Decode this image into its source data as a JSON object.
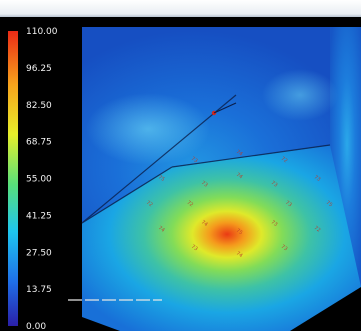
{
  "chart_data": {
    "type": "heatmap",
    "title": "",
    "colorbar": {
      "min": 0.0,
      "max": 110.0,
      "ticks": [
        "110.00",
        "96.25",
        "82.50",
        "68.75",
        "55.00",
        "41.25",
        "27.50",
        "13.75",
        "0.00"
      ],
      "colormap": [
        "#2a1fa8",
        "#1f6fe8",
        "#1ec6ef",
        "#58e07a",
        "#e6ee2a",
        "#f7a21c",
        "#ea2a16"
      ]
    },
    "surface": {
      "center_value": 100,
      "floor_range": [
        13.75,
        100
      ],
      "wall_range": [
        0,
        27.5
      ]
    },
    "sensor_labels": [
      "73",
      "73",
      "75",
      "74",
      "72",
      "73",
      "74",
      "73",
      "75",
      "72",
      "73",
      "74",
      "73",
      "74",
      "72",
      "75",
      "73",
      "74",
      "72",
      "73"
    ]
  },
  "colors": {
    "background": "#000000",
    "label_color": "#bb3a2a",
    "tick_text": "#f2f2f2"
  }
}
